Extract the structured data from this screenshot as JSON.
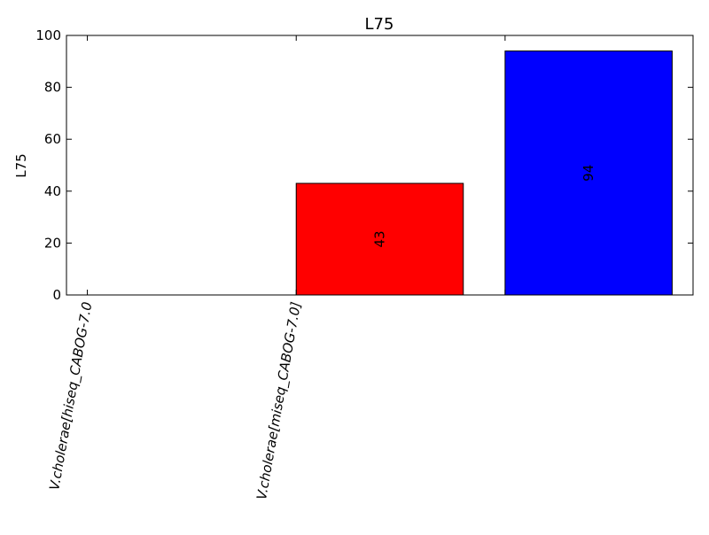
{
  "chart_data": {
    "type": "bar",
    "title": "L75",
    "ylabel": "L75",
    "xlabel": "",
    "ylim": [
      0,
      100
    ],
    "yticks": [
      0,
      20,
      40,
      60,
      80,
      100
    ],
    "categories": [
      "V.cholerae[hiseq_CABOG-7.0",
      "V.cholerae[miseq_CABOG-7.0]",
      ""
    ],
    "values": [
      null,
      43,
      94
    ],
    "value_labels": [
      "",
      "43",
      "94"
    ],
    "bar_colors": [
      "#ffffff",
      "#ff0000",
      "#0000ff"
    ],
    "grid": false
  }
}
